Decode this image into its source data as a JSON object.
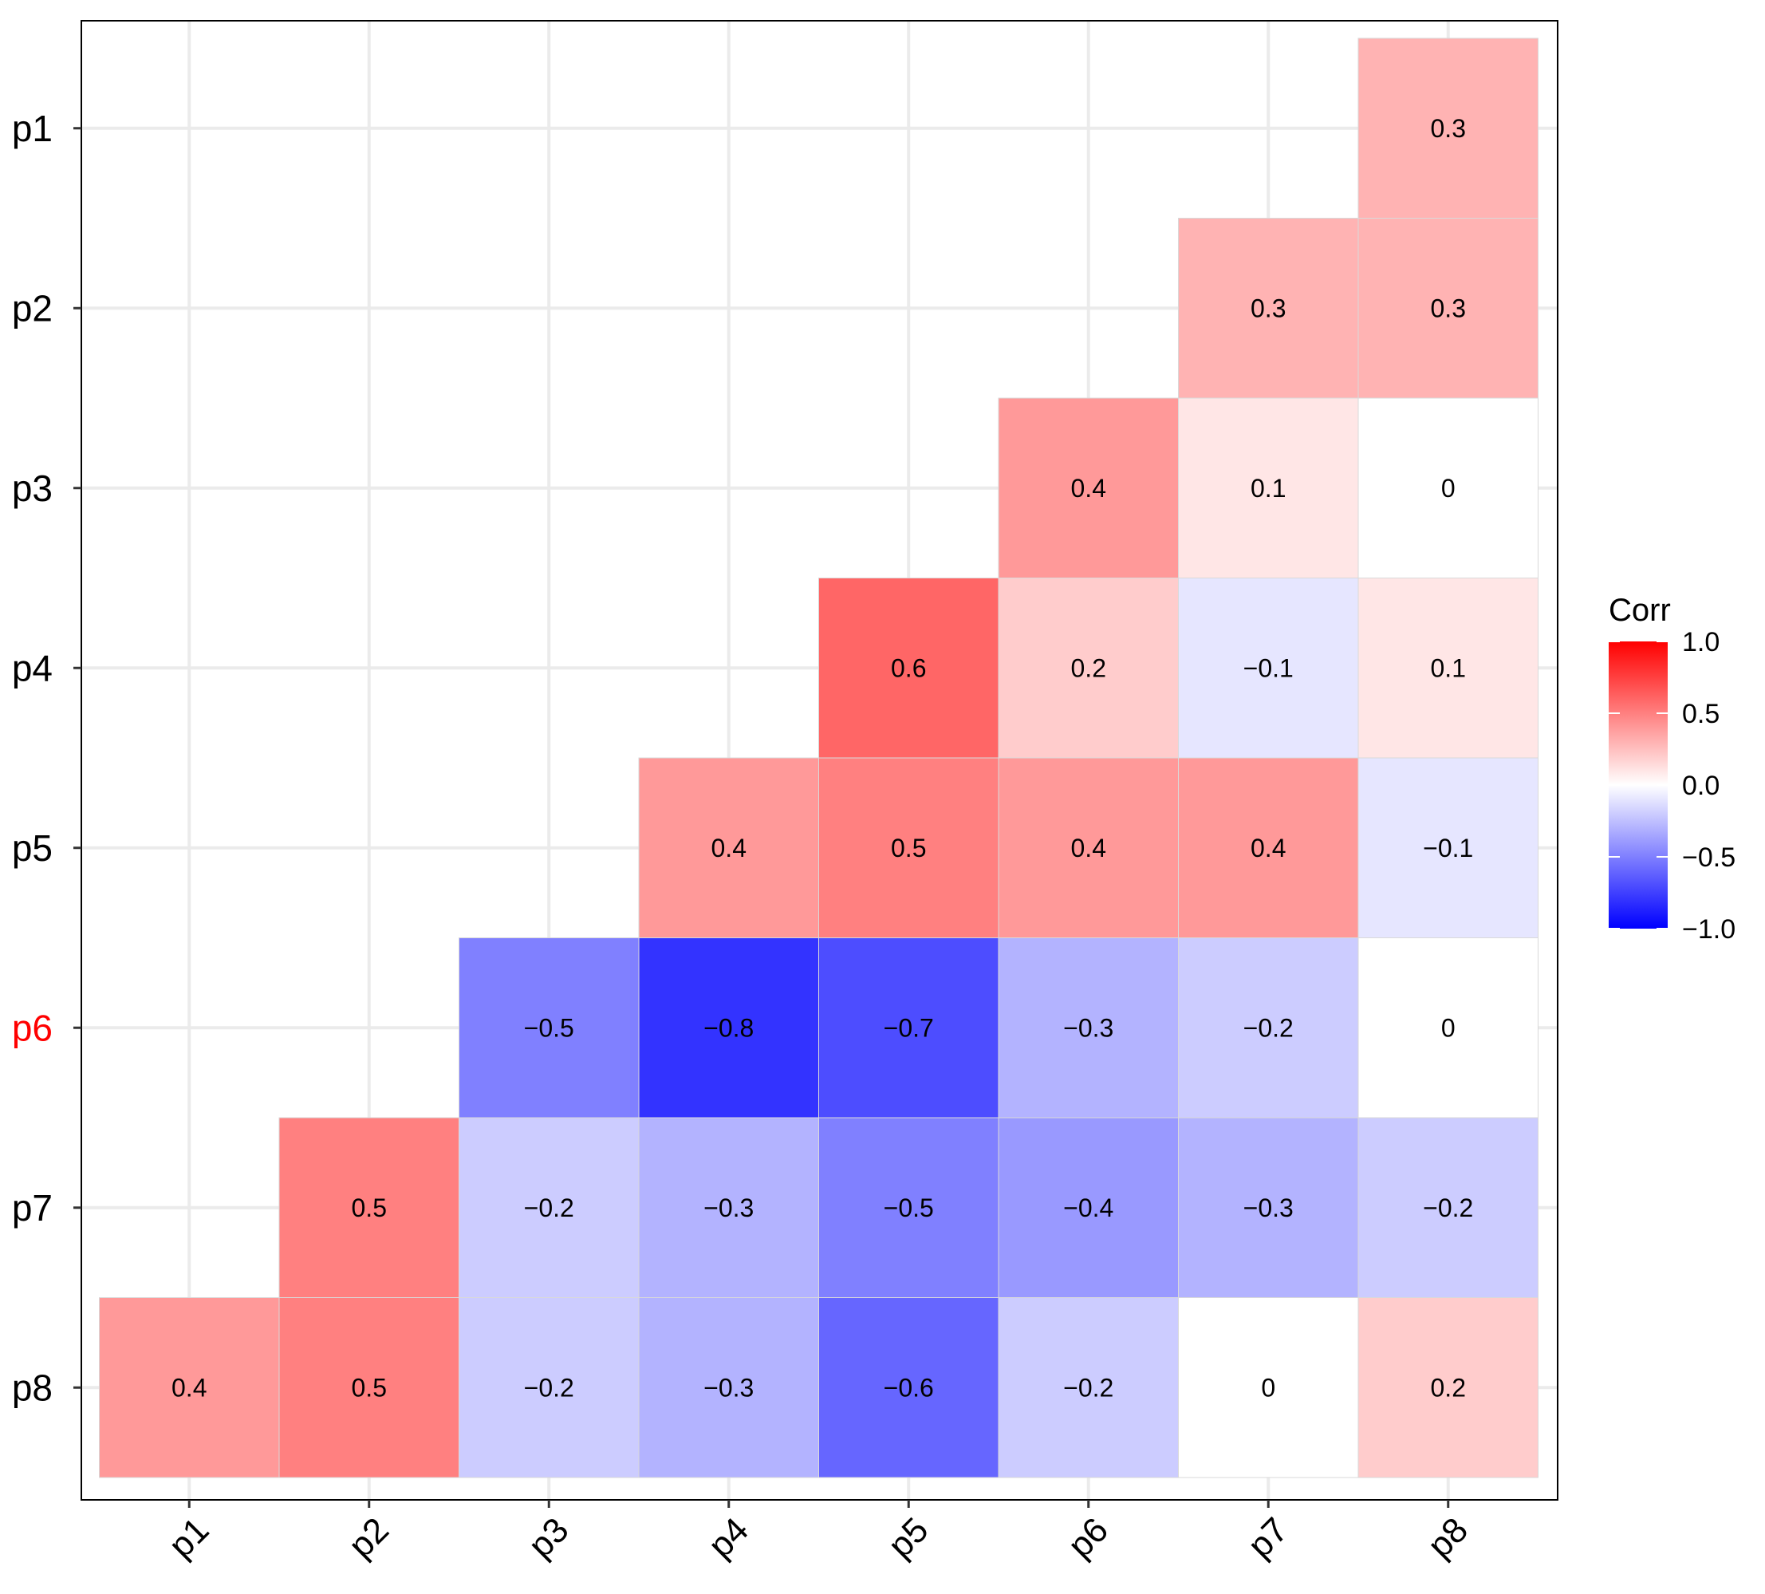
{
  "chart_data": {
    "type": "heatmap",
    "title": "",
    "xlabel": "",
    "ylabel": "",
    "x_categories": [
      "p1",
      "p2",
      "p3",
      "p4",
      "p5",
      "p6",
      "p7",
      "p8"
    ],
    "y_categories": [
      "p1",
      "p2",
      "p3",
      "p4",
      "p5",
      "p6",
      "p7",
      "p8"
    ],
    "highlighted_y_label": "p6",
    "highlight_color": "#ff0000",
    "grid": true,
    "cells": [
      {
        "row": "p1",
        "col": "p8",
        "value": 0.3,
        "label": "0.3"
      },
      {
        "row": "p2",
        "col": "p7",
        "value": 0.3,
        "label": "0.3"
      },
      {
        "row": "p2",
        "col": "p8",
        "value": 0.3,
        "label": "0.3"
      },
      {
        "row": "p3",
        "col": "p6",
        "value": 0.4,
        "label": "0.4"
      },
      {
        "row": "p3",
        "col": "p7",
        "value": 0.1,
        "label": "0.1"
      },
      {
        "row": "p3",
        "col": "p8",
        "value": 0.0,
        "label": "0"
      },
      {
        "row": "p4",
        "col": "p5",
        "value": 0.6,
        "label": "0.6"
      },
      {
        "row": "p4",
        "col": "p6",
        "value": 0.2,
        "label": "0.2"
      },
      {
        "row": "p4",
        "col": "p7",
        "value": -0.1,
        "label": "−0.1"
      },
      {
        "row": "p4",
        "col": "p8",
        "value": 0.1,
        "label": "0.1"
      },
      {
        "row": "p5",
        "col": "p4",
        "value": 0.4,
        "label": "0.4"
      },
      {
        "row": "p5",
        "col": "p5",
        "value": 0.5,
        "label": "0.5"
      },
      {
        "row": "p5",
        "col": "p6",
        "value": 0.4,
        "label": "0.4"
      },
      {
        "row": "p5",
        "col": "p7",
        "value": 0.4,
        "label": "0.4"
      },
      {
        "row": "p5",
        "col": "p8",
        "value": -0.1,
        "label": "−0.1"
      },
      {
        "row": "p6",
        "col": "p3",
        "value": -0.5,
        "label": "−0.5"
      },
      {
        "row": "p6",
        "col": "p4",
        "value": -0.8,
        "label": "−0.8"
      },
      {
        "row": "p6",
        "col": "p5",
        "value": -0.7,
        "label": "−0.7"
      },
      {
        "row": "p6",
        "col": "p6",
        "value": -0.3,
        "label": "−0.3"
      },
      {
        "row": "p6",
        "col": "p7",
        "value": -0.2,
        "label": "−0.2"
      },
      {
        "row": "p6",
        "col": "p8",
        "value": 0.0,
        "label": "0"
      },
      {
        "row": "p7",
        "col": "p2",
        "value": 0.5,
        "label": "0.5"
      },
      {
        "row": "p7",
        "col": "p3",
        "value": -0.2,
        "label": "−0.2"
      },
      {
        "row": "p7",
        "col": "p4",
        "value": -0.3,
        "label": "−0.3"
      },
      {
        "row": "p7",
        "col": "p5",
        "value": -0.5,
        "label": "−0.5"
      },
      {
        "row": "p7",
        "col": "p6",
        "value": -0.4,
        "label": "−0.4"
      },
      {
        "row": "p7",
        "col": "p7",
        "value": -0.3,
        "label": "−0.3"
      },
      {
        "row": "p7",
        "col": "p8",
        "value": -0.2,
        "label": "−0.2"
      },
      {
        "row": "p8",
        "col": "p1",
        "value": 0.4,
        "label": "0.4"
      },
      {
        "row": "p8",
        "col": "p2",
        "value": 0.5,
        "label": "0.5"
      },
      {
        "row": "p8",
        "col": "p3",
        "value": -0.2,
        "label": "−0.2"
      },
      {
        "row": "p8",
        "col": "p4",
        "value": -0.3,
        "label": "−0.3"
      },
      {
        "row": "p8",
        "col": "p5",
        "value": -0.6,
        "label": "−0.6"
      },
      {
        "row": "p8",
        "col": "p6",
        "value": -0.2,
        "label": "−0.2"
      },
      {
        "row": "p8",
        "col": "p7",
        "value": 0.0,
        "label": "0"
      },
      {
        "row": "p8",
        "col": "p8",
        "value": 0.2,
        "label": "0.2"
      }
    ],
    "legend": {
      "title": "Corr",
      "position": "right",
      "range": [
        -1.0,
        1.0
      ],
      "ticks": [
        {
          "value": 1.0,
          "label": "1.0"
        },
        {
          "value": 0.5,
          "label": "0.5"
        },
        {
          "value": 0.0,
          "label": "0.0"
        },
        {
          "value": -0.5,
          "label": "−0.5"
        },
        {
          "value": -1.0,
          "label": "−1.0"
        }
      ],
      "colors": {
        "low": "#0000ff",
        "mid": "#ffffff",
        "high": "#ff0000"
      }
    }
  }
}
